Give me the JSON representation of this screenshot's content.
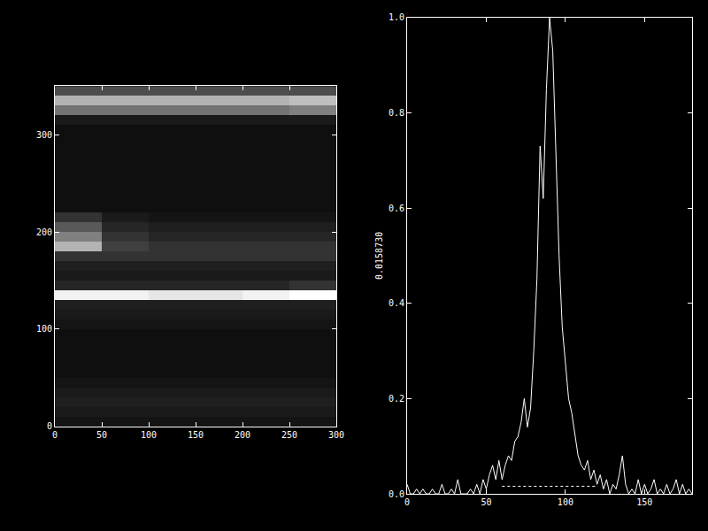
{
  "chart_data": [
    {
      "type": "heatmap",
      "x": [
        25,
        75,
        125,
        175,
        225,
        275
      ],
      "y": [
        5,
        15,
        25,
        35,
        45,
        55,
        65,
        75,
        85,
        95,
        105,
        115,
        125,
        135,
        145,
        155,
        165,
        175,
        185,
        195,
        205,
        215,
        225,
        235,
        245,
        255,
        265,
        275,
        285,
        295,
        305,
        315,
        325,
        335,
        345
      ],
      "z": [
        [
          0.08,
          0.08,
          0.08,
          0.08,
          0.08,
          0.08
        ],
        [
          0.1,
          0.1,
          0.1,
          0.1,
          0.1,
          0.1
        ],
        [
          0.12,
          0.12,
          0.12,
          0.12,
          0.12,
          0.12
        ],
        [
          0.1,
          0.1,
          0.1,
          0.1,
          0.1,
          0.1
        ],
        [
          0.08,
          0.08,
          0.08,
          0.08,
          0.08,
          0.08
        ],
        [
          0.06,
          0.06,
          0.06,
          0.06,
          0.06,
          0.06
        ],
        [
          0.06,
          0.06,
          0.06,
          0.06,
          0.06,
          0.06
        ],
        [
          0.06,
          0.06,
          0.06,
          0.06,
          0.06,
          0.06
        ],
        [
          0.06,
          0.06,
          0.06,
          0.06,
          0.06,
          0.06
        ],
        [
          0.06,
          0.06,
          0.06,
          0.06,
          0.06,
          0.06
        ],
        [
          0.08,
          0.08,
          0.08,
          0.08,
          0.08,
          0.08
        ],
        [
          0.1,
          0.1,
          0.1,
          0.1,
          0.1,
          0.1
        ],
        [
          0.12,
          0.12,
          0.12,
          0.12,
          0.12,
          0.12
        ],
        [
          0.95,
          0.95,
          0.9,
          0.9,
          0.95,
          1.0
        ],
        [
          0.15,
          0.15,
          0.15,
          0.15,
          0.15,
          0.2
        ],
        [
          0.1,
          0.1,
          0.1,
          0.1,
          0.1,
          0.1
        ],
        [
          0.12,
          0.12,
          0.12,
          0.12,
          0.12,
          0.12
        ],
        [
          0.2,
          0.2,
          0.2,
          0.2,
          0.2,
          0.2
        ],
        [
          0.7,
          0.25,
          0.2,
          0.2,
          0.2,
          0.2
        ],
        [
          0.5,
          0.2,
          0.15,
          0.15,
          0.15,
          0.15
        ],
        [
          0.35,
          0.15,
          0.12,
          0.12,
          0.12,
          0.12
        ],
        [
          0.2,
          0.1,
          0.08,
          0.08,
          0.08,
          0.08
        ],
        [
          0.06,
          0.06,
          0.06,
          0.06,
          0.06,
          0.06
        ],
        [
          0.06,
          0.06,
          0.06,
          0.06,
          0.06,
          0.06
        ],
        [
          0.06,
          0.06,
          0.06,
          0.06,
          0.06,
          0.06
        ],
        [
          0.06,
          0.06,
          0.06,
          0.06,
          0.06,
          0.06
        ],
        [
          0.06,
          0.06,
          0.06,
          0.06,
          0.06,
          0.06
        ],
        [
          0.06,
          0.06,
          0.06,
          0.06,
          0.06,
          0.06
        ],
        [
          0.06,
          0.06,
          0.06,
          0.06,
          0.06,
          0.06
        ],
        [
          0.06,
          0.06,
          0.06,
          0.06,
          0.06,
          0.06
        ],
        [
          0.06,
          0.06,
          0.06,
          0.06,
          0.06,
          0.06
        ],
        [
          0.1,
          0.1,
          0.1,
          0.1,
          0.1,
          0.1
        ],
        [
          0.45,
          0.45,
          0.45,
          0.45,
          0.45,
          0.5
        ],
        [
          0.7,
          0.7,
          0.7,
          0.7,
          0.7,
          0.75
        ],
        [
          0.3,
          0.3,
          0.3,
          0.3,
          0.3,
          0.3
        ]
      ],
      "zlim": [
        0,
        1
      ],
      "xlim": [
        0,
        300
      ],
      "ylim": [
        0,
        350
      ],
      "xticks": [
        0,
        50,
        100,
        150,
        200,
        250,
        300
      ],
      "yticks": [
        0,
        100,
        200,
        300
      ],
      "grid": false
    },
    {
      "type": "line",
      "ylabel": "0.0158730",
      "series": [
        {
          "color": "#ffffff",
          "line_style": "solid",
          "x": [
            0,
            2,
            4,
            6,
            8,
            10,
            12,
            14,
            16,
            18,
            20,
            22,
            24,
            26,
            28,
            30,
            32,
            34,
            36,
            38,
            40,
            42,
            44,
            46,
            48,
            50,
            52,
            54,
            56,
            58,
            60,
            62,
            64,
            66,
            68,
            70,
            72,
            74,
            76,
            78,
            80,
            82,
            84,
            86,
            88,
            90,
            92,
            94,
            96,
            98,
            100,
            102,
            104,
            106,
            108,
            110,
            112,
            114,
            116,
            118,
            120,
            122,
            124,
            126,
            128,
            130,
            132,
            134,
            136,
            138,
            140,
            142,
            144,
            146,
            148,
            150,
            152,
            154,
            156,
            158,
            160,
            162,
            164,
            166,
            168,
            170,
            172,
            174,
            176,
            178,
            180
          ],
          "values": [
            0.02,
            0,
            0,
            0.01,
            0,
            0.01,
            0,
            0,
            0.01,
            0,
            0,
            0.02,
            0,
            0,
            0.01,
            0,
            0.03,
            0,
            0,
            0,
            0.01,
            0,
            0.02,
            0,
            0.03,
            0.01,
            0.04,
            0.06,
            0.03,
            0.07,
            0.03,
            0.06,
            0.08,
            0.07,
            0.11,
            0.12,
            0.15,
            0.2,
            0.14,
            0.18,
            0.3,
            0.45,
            0.73,
            0.62,
            0.85,
            1.0,
            0.93,
            0.72,
            0.5,
            0.35,
            0.28,
            0.2,
            0.17,
            0.12,
            0.08,
            0.06,
            0.05,
            0.07,
            0.03,
            0.05,
            0.02,
            0.04,
            0.01,
            0.03,
            0,
            0.02,
            0.01,
            0.04,
            0.08,
            0.02,
            0,
            0.01,
            0,
            0.03,
            0,
            0.02,
            0,
            0.01,
            0.03,
            0,
            0.01,
            0,
            0.02,
            0,
            0.01,
            0.03,
            0,
            0.02,
            0,
            0.01,
            0
          ]
        },
        {
          "color": "#ffffff",
          "line_style": "dotted",
          "x": [
            60,
            120
          ],
          "values": [
            0.0159,
            0.0159
          ]
        }
      ],
      "xlim": [
        0,
        180
      ],
      "ylim": [
        0,
        1
      ],
      "xticks": [
        0,
        50,
        100,
        150
      ],
      "yticks": [
        {
          "value": 0,
          "label": "0.0"
        },
        0.2,
        0.4,
        0.6,
        0.8,
        {
          "value": 1,
          "label": "1.0"
        }
      ],
      "grid": false
    }
  ]
}
